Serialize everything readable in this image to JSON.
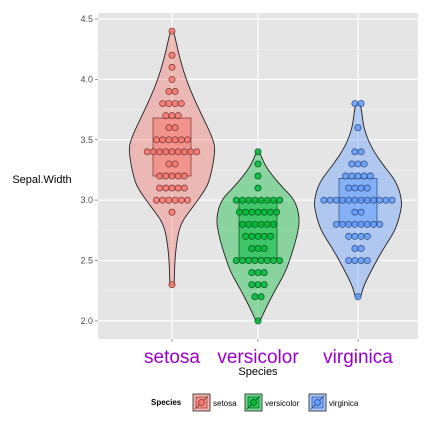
{
  "chart_data": {
    "type": "violin",
    "xlabel": "Species",
    "ylabel": "Sepal.Width",
    "ylim": [
      1.85,
      4.55
    ],
    "yticks": [
      2.0,
      2.5,
      3.0,
      3.5,
      4.0,
      4.5
    ],
    "ytick_labels": [
      "2.0",
      "2.5",
      "3.0",
      "3.5",
      "4.0",
      "4.5"
    ],
    "categories": [
      "setosa",
      "versicolor",
      "virginica"
    ],
    "tick_label_color": "#9900cc",
    "legend": {
      "title": "Species",
      "position": "bottom"
    },
    "series": [
      {
        "name": "setosa",
        "fill": "#f8766d",
        "box": {
          "q1": 3.2,
          "median": 3.4,
          "q3": 3.68
        },
        "points": [
          2.3,
          2.9,
          3.0,
          3.0,
          3.0,
          3.0,
          3.0,
          3.0,
          3.1,
          3.1,
          3.1,
          3.1,
          3.1,
          3.2,
          3.2,
          3.2,
          3.2,
          3.2,
          3.3,
          3.3,
          3.4,
          3.4,
          3.4,
          3.4,
          3.4,
          3.4,
          3.4,
          3.4,
          3.4,
          3.5,
          3.5,
          3.5,
          3.5,
          3.5,
          3.5,
          3.6,
          3.6,
          3.7,
          3.7,
          3.7,
          3.8,
          3.8,
          3.8,
          3.8,
          3.9,
          3.9,
          4.0,
          4.1,
          4.2,
          4.4
        ],
        "density": [
          [
            2.3,
            0.05
          ],
          [
            2.45,
            0.06
          ],
          [
            2.6,
            0.09
          ],
          [
            2.8,
            0.18
          ],
          [
            2.95,
            0.5
          ],
          [
            3.1,
            0.8
          ],
          [
            3.2,
            0.9
          ],
          [
            3.35,
            0.98
          ],
          [
            3.45,
            1.0
          ],
          [
            3.55,
            0.9
          ],
          [
            3.7,
            0.7
          ],
          [
            3.85,
            0.5
          ],
          [
            4.0,
            0.33
          ],
          [
            4.15,
            0.2
          ],
          [
            4.3,
            0.1
          ],
          [
            4.4,
            0.04
          ]
        ]
      },
      {
        "name": "versicolor",
        "fill": "#00ba38",
        "box": {
          "q1": 2.52,
          "median": 2.8,
          "q3": 3.0
        },
        "points": [
          2.0,
          2.2,
          2.2,
          2.3,
          2.3,
          2.3,
          2.4,
          2.4,
          2.4,
          2.5,
          2.5,
          2.5,
          2.5,
          2.5,
          2.5,
          2.5,
          2.5,
          2.6,
          2.6,
          2.6,
          2.7,
          2.7,
          2.7,
          2.7,
          2.7,
          2.8,
          2.8,
          2.8,
          2.8,
          2.8,
          2.8,
          2.9,
          2.9,
          2.9,
          2.9,
          2.9,
          2.9,
          2.9,
          3.0,
          3.0,
          3.0,
          3.0,
          3.0,
          3.0,
          3.0,
          3.0,
          3.1,
          3.2,
          3.3,
          3.4
        ],
        "density": [
          [
            2.0,
            0.05
          ],
          [
            2.1,
            0.18
          ],
          [
            2.25,
            0.4
          ],
          [
            2.4,
            0.65
          ],
          [
            2.55,
            0.8
          ],
          [
            2.7,
            0.93
          ],
          [
            2.85,
            1.0
          ],
          [
            3.0,
            0.88
          ],
          [
            3.1,
            0.6
          ],
          [
            3.2,
            0.35
          ],
          [
            3.3,
            0.15
          ],
          [
            3.4,
            0.04
          ]
        ]
      },
      {
        "name": "virginica",
        "fill": "#619cff",
        "box": {
          "q1": 2.8,
          "median": 3.0,
          "q3": 3.18
        },
        "points": [
          2.2,
          2.5,
          2.5,
          2.5,
          2.5,
          2.6,
          2.6,
          2.7,
          2.7,
          2.7,
          2.7,
          2.8,
          2.8,
          2.8,
          2.8,
          2.8,
          2.8,
          2.8,
          2.8,
          2.9,
          2.9,
          3.0,
          3.0,
          3.0,
          3.0,
          3.0,
          3.0,
          3.0,
          3.0,
          3.0,
          3.0,
          3.0,
          3.0,
          3.1,
          3.1,
          3.1,
          3.1,
          3.2,
          3.2,
          3.2,
          3.2,
          3.2,
          3.3,
          3.3,
          3.3,
          3.4,
          3.4,
          3.6,
          3.8,
          3.8
        ],
        "density": [
          [
            2.2,
            0.06
          ],
          [
            2.3,
            0.14
          ],
          [
            2.45,
            0.35
          ],
          [
            2.6,
            0.58
          ],
          [
            2.75,
            0.85
          ],
          [
            2.9,
            0.97
          ],
          [
            3.0,
            1.0
          ],
          [
            3.15,
            0.88
          ],
          [
            3.3,
            0.55
          ],
          [
            3.45,
            0.28
          ],
          [
            3.6,
            0.13
          ],
          [
            3.72,
            0.09
          ],
          [
            3.8,
            0.05
          ]
        ]
      }
    ]
  }
}
